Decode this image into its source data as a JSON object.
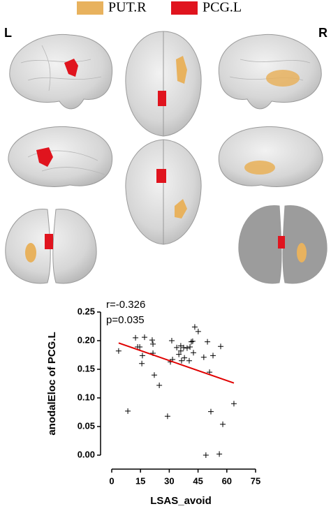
{
  "brain_panel": {
    "legend": [
      {
        "name": "PUT.R",
        "color": "#e8b25e"
      },
      {
        "name": "PCG.L",
        "color": "#e0141e"
      }
    ],
    "left_label": "L",
    "right_label": "R"
  },
  "chart_data": {
    "type": "scatter",
    "xlabel": "LSAS_avoid",
    "ylabel": "anodalEloc of PCG.L",
    "annotations": [
      "r=-0.326",
      "p=0.035"
    ],
    "x": [
      3.6,
      8.4,
      12.4,
      13.5,
      14.6,
      15.7,
      16.0,
      17.1,
      21.1,
      21.5,
      21.5,
      22.2,
      24.8,
      29.1,
      30.6,
      31.3,
      31.7,
      33.9,
      35.0,
      36.0,
      36.0,
      36.4,
      37.5,
      37.9,
      39.3,
      40.4,
      40.8,
      41.5,
      42.2,
      42.6,
      43.3,
      45.1,
      48.0,
      49.1,
      49.9,
      51.0,
      51.7,
      52.8,
      56.1,
      56.8,
      57.9,
      63.7
    ],
    "values": [
      0.182,
      0.077,
      0.205,
      0.189,
      0.189,
      0.16,
      0.174,
      0.206,
      0.201,
      0.194,
      0.178,
      0.14,
      0.122,
      0.068,
      0.163,
      0.2,
      0.167,
      0.188,
      0.176,
      0.191,
      0.182,
      0.165,
      0.188,
      0.17,
      0.187,
      0.165,
      0.189,
      0.198,
      0.199,
      0.179,
      0.224,
      0.216,
      0.171,
      0.0,
      0.198,
      0.145,
      0.076,
      0.174,
      0.002,
      0.19,
      0.054,
      0.09
    ],
    "color": "#000000",
    "fit_line": {
      "x": [
        3.6,
        63.7
      ],
      "y": [
        0.196,
        0.126
      ],
      "color": "#e00000"
    },
    "xlim": [
      0,
      75
    ],
    "xticks": [
      0,
      15,
      30,
      45,
      60,
      75
    ],
    "ylim": [
      0,
      0.25
    ],
    "yticks": [
      {
        "value": 0,
        "label": "0.00"
      },
      {
        "value": 0.05,
        "label": "0.05"
      },
      {
        "value": 0.1,
        "label": "0.10"
      },
      {
        "value": 0.15,
        "label": "0.15"
      },
      {
        "value": 0.2,
        "label": "0.20"
      },
      {
        "value": 0.25,
        "label": "0.25"
      }
    ]
  }
}
